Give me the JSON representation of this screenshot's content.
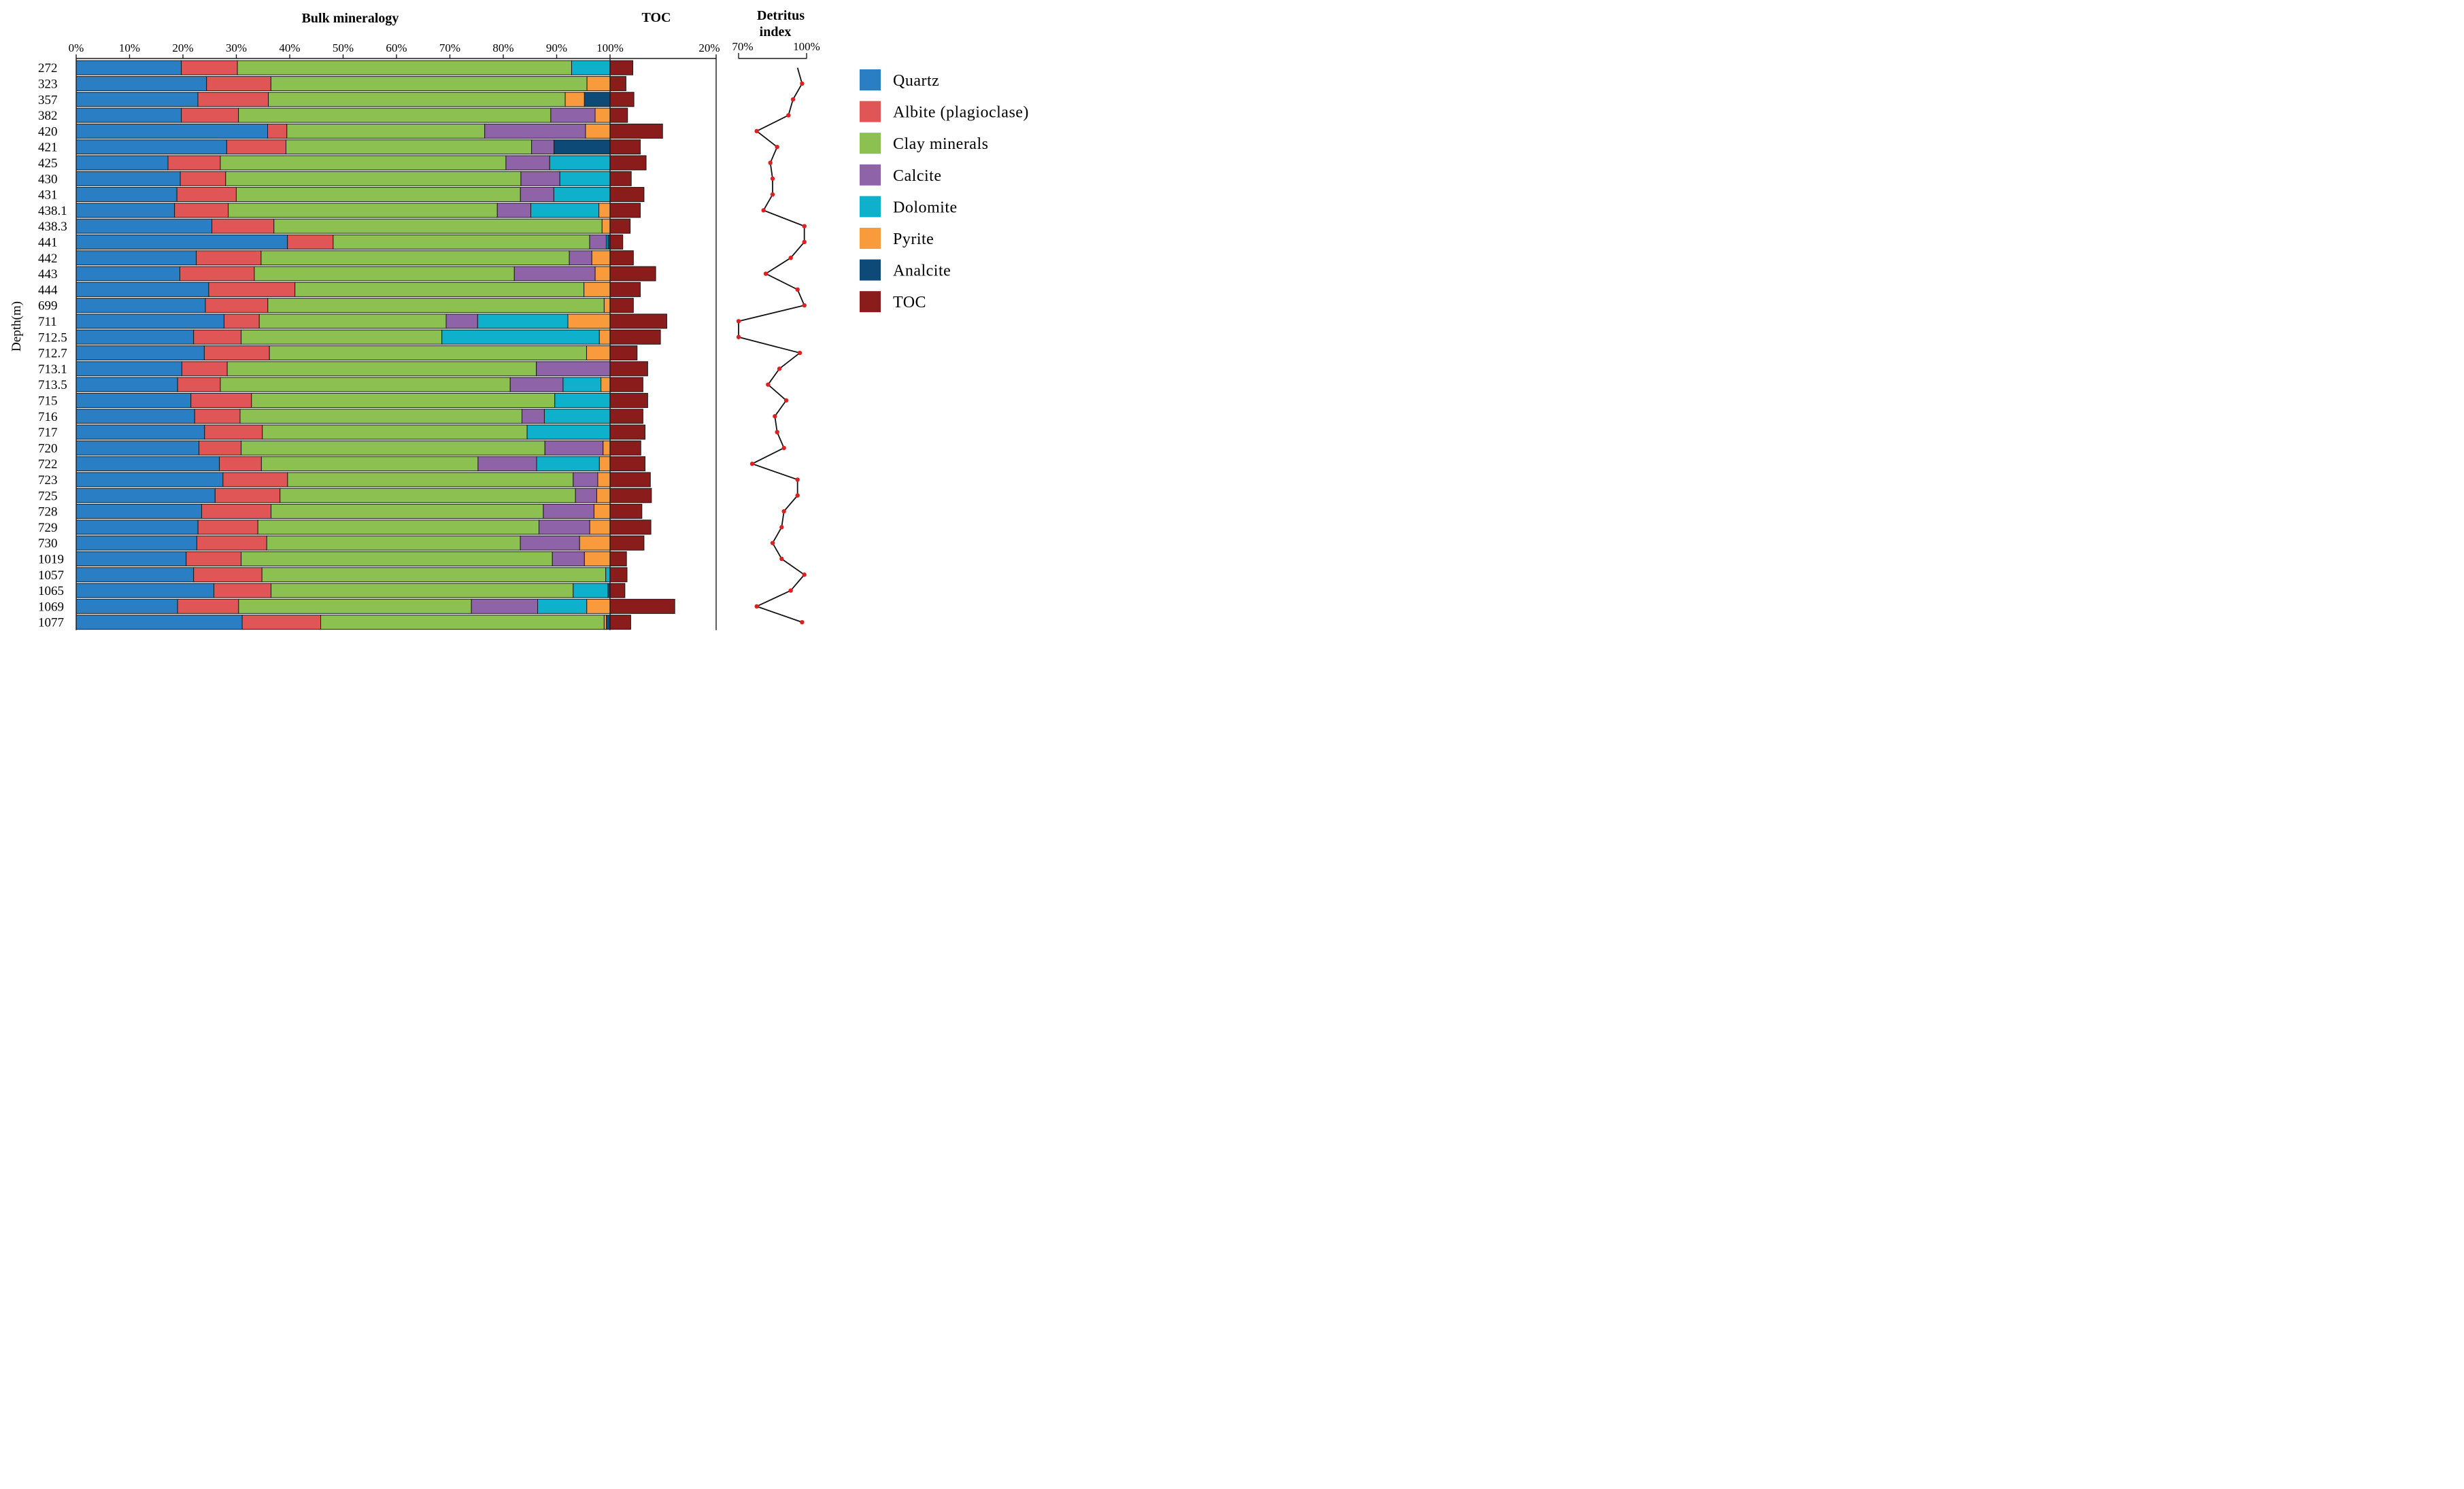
{
  "chart_data": {
    "type": "stacked-bar-horizontal",
    "titles": {
      "bulk": "Bulk mineralogy",
      "toc": "TOC",
      "detritus": [
        "Detritus",
        "index"
      ]
    },
    "ylabel": "Depth(m)",
    "mineral_axis": {
      "range": [
        0,
        100
      ],
      "ticks": [
        "0%",
        "10%",
        "20%",
        "30%",
        "40%",
        "50%",
        "60%",
        "70%",
        "80%",
        "90%",
        "100%"
      ]
    },
    "toc_axis": {
      "range": [
        0,
        20
      ],
      "end_tick": "20%"
    },
    "detritus_axis": {
      "range": [
        70,
        100
      ],
      "ticks": [
        "70%",
        "100%"
      ]
    },
    "colors": {
      "Quartz": "#2a7fc4",
      "Albite (plagioclase)": "#e05555",
      "Clay minerals": "#8cc152",
      "Calcite": "#8e63a8",
      "Dolomite": "#0fb0cc",
      "Pyrite": "#f99b3c",
      "Analcite": "#0d4a78",
      "TOC": "#8b1c1c",
      "detritus_point": "#e02020",
      "detritus_line": "#111111"
    },
    "legend": [
      "Quartz",
      "Albite (plagioclase)",
      "Clay minerals",
      "Calcite",
      "Dolomite",
      "Pyrite",
      "Analcite",
      "TOC"
    ],
    "minerals": [
      "Quartz",
      "Albite (plagioclase)",
      "Clay minerals",
      "Calcite",
      "Dolomite",
      "Pyrite",
      "Analcite"
    ],
    "depths": [
      "272",
      "323",
      "357",
      "382",
      "420",
      "421",
      "425",
      "430",
      "431",
      "438.1",
      "438.3",
      "441",
      "442",
      "443",
      "444",
      "699",
      "711",
      "712.5",
      "712.7",
      "713.1",
      "713.5",
      "715",
      "716",
      "717",
      "720",
      "722",
      "723",
      "725",
      "728",
      "729",
      "730",
      "1019",
      "1057",
      "1065",
      "1069",
      "1077"
    ],
    "series": [
      {
        "name": "Quartz",
        "values": [
          19.7,
          24.3,
          22.8,
          19.7,
          35.9,
          28.2,
          17.2,
          19.5,
          19.0,
          18.5,
          25.6,
          39.3,
          22.4,
          19.5,
          24.9,
          24.2,
          27.7,
          22.0,
          24.0,
          19.8,
          19.0,
          21.6,
          22.2,
          24.0,
          23.0,
          26.9,
          27.5,
          26.1,
          23.5,
          22.8,
          22.6,
          20.6,
          22.0,
          25.8,
          19.6,
          31.1
        ]
      },
      {
        "name": "Albite (plagioclase)",
        "values": [
          10.5,
          12.0,
          13.2,
          10.7,
          3.6,
          11.1,
          9.8,
          8.5,
          11.2,
          10.1,
          11.7,
          8.5,
          12.1,
          14.0,
          16.2,
          11.7,
          6.6,
          8.9,
          12.2,
          8.5,
          8.0,
          11.4,
          8.5,
          10.8,
          7.9,
          7.9,
          12.1,
          12.2,
          13.0,
          11.2,
          13.1,
          10.3,
          12.8,
          10.7,
          11.8,
          14.7
        ]
      },
      {
        "name": "Clay minerals",
        "values": [
          62.6,
          58.9,
          55.6,
          58.5,
          37.1,
          46.0,
          53.5,
          55.3,
          53.6,
          50.6,
          61.9,
          47.7,
          57.5,
          48.9,
          54.3,
          63.0,
          35.0,
          37.6,
          59.4,
          57.9,
          54.3,
          57.1,
          52.8,
          49.5,
          56.9,
          40.7,
          53.5,
          55.5,
          51.0,
          52.6,
          47.5,
          58.3,
          64.4,
          56.6,
          45.0,
          53.1
        ]
      },
      {
        "name": "Calcite",
        "values": [
          0.0,
          0.0,
          0.0,
          8.3,
          18.9,
          4.2,
          8.2,
          7.3,
          6.3,
          6.3,
          0.0,
          3.1,
          4.2,
          15.2,
          0.0,
          0.0,
          5.9,
          0.0,
          0.0,
          13.8,
          9.9,
          0.0,
          4.2,
          0.0,
          10.9,
          11.0,
          4.6,
          4.0,
          9.5,
          9.5,
          11.1,
          6.0,
          0.0,
          0.0,
          12.8,
          0.0
        ]
      },
      {
        "name": "Dolomite",
        "values": [
          7.2,
          0.0,
          0.0,
          0.0,
          0.0,
          0.0,
          11.3,
          9.4,
          10.6,
          12.8,
          0.0,
          0.3,
          0.0,
          0.0,
          0.0,
          0.0,
          16.9,
          29.5,
          0.0,
          0.0,
          7.1,
          10.4,
          12.3,
          15.5,
          0.0,
          11.8,
          0.0,
          0.0,
          0.0,
          0.0,
          0.0,
          0.0,
          0.8,
          6.5,
          9.5,
          0.0
        ]
      },
      {
        "name": "Pyrite",
        "values": [
          0.0,
          4.3,
          3.6,
          2.8,
          4.6,
          0.0,
          0.0,
          0.0,
          0.0,
          2.1,
          1.5,
          0.0,
          3.4,
          2.8,
          4.9,
          1.1,
          7.9,
          2.0,
          4.4,
          0.0,
          1.7,
          0.0,
          0.0,
          0.0,
          1.3,
          2.0,
          2.3,
          2.5,
          3.0,
          3.8,
          5.7,
          4.8,
          0.0,
          0.0,
          4.5,
          0.4
        ]
      },
      {
        "name": "Analcite",
        "values": [
          0.0,
          0.0,
          4.8,
          0.0,
          0.0,
          10.5,
          0.0,
          0.0,
          0.0,
          0.0,
          0.0,
          0.4,
          0.0,
          0.0,
          0.0,
          0.0,
          0.0,
          0.0,
          0.0,
          0.0,
          0.0,
          0.0,
          0.0,
          0.0,
          0.0,
          0.0,
          0.0,
          0.0,
          0.0,
          0.0,
          0.0,
          0.0,
          0.0,
          0.4,
          0.0,
          0.7
        ]
      }
    ],
    "toc_values": [
      4.3,
      3.0,
      4.5,
      3.3,
      9.9,
      5.7,
      6.8,
      4.0,
      6.4,
      5.7,
      3.8,
      2.4,
      4.4,
      8.6,
      5.7,
      4.4,
      10.7,
      9.5,
      5.1,
      7.1,
      6.2,
      7.1,
      6.2,
      6.6,
      5.8,
      6.6,
      7.6,
      7.8,
      6.0,
      7.7,
      6.4,
      3.1,
      3.2,
      2.8,
      12.2,
      3.9
    ],
    "detritus_values": [
      96,
      98,
      94,
      92,
      78,
      87,
      84,
      85,
      85,
      81,
      99,
      99,
      93,
      82,
      96,
      99,
      70,
      70,
      97,
      88,
      83,
      91,
      86,
      87,
      90,
      76,
      96,
      96,
      90,
      89,
      85,
      89,
      99,
      93,
      78,
      98
    ]
  }
}
